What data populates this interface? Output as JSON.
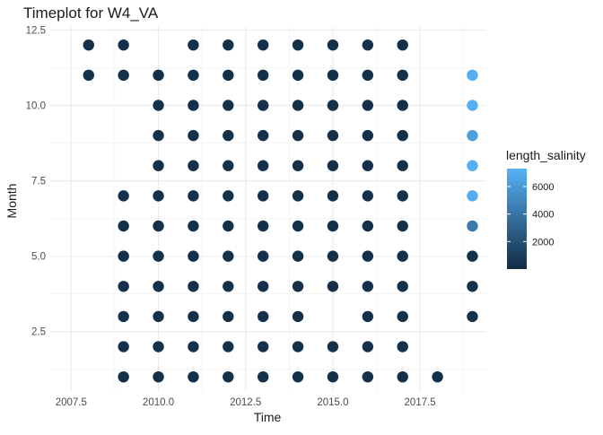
{
  "chart_data": {
    "type": "scatter",
    "title": "Timeplot for W4_VA",
    "xlabel": "Time",
    "ylabel": "Month",
    "xlim": [
      2006.9,
      2019.4
    ],
    "ylim": [
      0.5,
      12.6
    ],
    "x_ticks": [
      2007.5,
      2010.0,
      2012.5,
      2015.0,
      2017.5
    ],
    "x_tick_labels": [
      "2007.5",
      "2010.0",
      "2012.5",
      "2015.0",
      "2017.5"
    ],
    "y_ticks": [
      2.5,
      5.0,
      7.5,
      10.0,
      12.5
    ],
    "y_tick_labels": [
      "2.5",
      "5.0",
      "7.5",
      "10.0",
      "12.5"
    ],
    "grid": true,
    "legend": {
      "title": "length_salinity",
      "position": "right",
      "ticks": [
        2000,
        4000,
        6000
      ],
      "tick_labels": [
        "2000",
        "4000",
        "6000"
      ],
      "range": [
        0,
        7300
      ],
      "color_low": "#132B43",
      "color_high": "#56B1F7"
    },
    "points": [
      {
        "x": 2008,
        "y": 12,
        "value": 250
      },
      {
        "x": 2008,
        "y": 11,
        "value": 250
      },
      {
        "x": 2009,
        "y": 12,
        "value": 250
      },
      {
        "x": 2009,
        "y": 11,
        "value": 250
      },
      {
        "x": 2009,
        "y": 7,
        "value": 250
      },
      {
        "x": 2009,
        "y": 6,
        "value": 250
      },
      {
        "x": 2009,
        "y": 5,
        "value": 250
      },
      {
        "x": 2009,
        "y": 4,
        "value": 250
      },
      {
        "x": 2009,
        "y": 3,
        "value": 250
      },
      {
        "x": 2009,
        "y": 2,
        "value": 250
      },
      {
        "x": 2009,
        "y": 1,
        "value": 250
      },
      {
        "x": 2010,
        "y": 11,
        "value": 250
      },
      {
        "x": 2010,
        "y": 10,
        "value": 250
      },
      {
        "x": 2010,
        "y": 9,
        "value": 250
      },
      {
        "x": 2010,
        "y": 8,
        "value": 250
      },
      {
        "x": 2010,
        "y": 7,
        "value": 250
      },
      {
        "x": 2010,
        "y": 6,
        "value": 250
      },
      {
        "x": 2010,
        "y": 5,
        "value": 250
      },
      {
        "x": 2010,
        "y": 4,
        "value": 250
      },
      {
        "x": 2010,
        "y": 3,
        "value": 250
      },
      {
        "x": 2010,
        "y": 2,
        "value": 250
      },
      {
        "x": 2010,
        "y": 1,
        "value": 250
      },
      {
        "x": 2011,
        "y": 12,
        "value": 250
      },
      {
        "x": 2011,
        "y": 11,
        "value": 250
      },
      {
        "x": 2011,
        "y": 10,
        "value": 250
      },
      {
        "x": 2011,
        "y": 9,
        "value": 250
      },
      {
        "x": 2011,
        "y": 8,
        "value": 250
      },
      {
        "x": 2011,
        "y": 7,
        "value": 250
      },
      {
        "x": 2011,
        "y": 6,
        "value": 250
      },
      {
        "x": 2011,
        "y": 5,
        "value": 250
      },
      {
        "x": 2011,
        "y": 4,
        "value": 250
      },
      {
        "x": 2011,
        "y": 3,
        "value": 250
      },
      {
        "x": 2011,
        "y": 2,
        "value": 250
      },
      {
        "x": 2011,
        "y": 1,
        "value": 250
      },
      {
        "x": 2012,
        "y": 12,
        "value": 250
      },
      {
        "x": 2012,
        "y": 11,
        "value": 250
      },
      {
        "x": 2012,
        "y": 10,
        "value": 250
      },
      {
        "x": 2012,
        "y": 9,
        "value": 250
      },
      {
        "x": 2012,
        "y": 8,
        "value": 250
      },
      {
        "x": 2012,
        "y": 7,
        "value": 250
      },
      {
        "x": 2012,
        "y": 6,
        "value": 250
      },
      {
        "x": 2012,
        "y": 5,
        "value": 250
      },
      {
        "x": 2012,
        "y": 4,
        "value": 250
      },
      {
        "x": 2012,
        "y": 3,
        "value": 250
      },
      {
        "x": 2012,
        "y": 2,
        "value": 250
      },
      {
        "x": 2012,
        "y": 1,
        "value": 250
      },
      {
        "x": 2013,
        "y": 12,
        "value": 250
      },
      {
        "x": 2013,
        "y": 11,
        "value": 250
      },
      {
        "x": 2013,
        "y": 10,
        "value": 250
      },
      {
        "x": 2013,
        "y": 9,
        "value": 250
      },
      {
        "x": 2013,
        "y": 8,
        "value": 250
      },
      {
        "x": 2013,
        "y": 7,
        "value": 250
      },
      {
        "x": 2013,
        "y": 6,
        "value": 250
      },
      {
        "x": 2013,
        "y": 5,
        "value": 250
      },
      {
        "x": 2013,
        "y": 4,
        "value": 250
      },
      {
        "x": 2013,
        "y": 3,
        "value": 250
      },
      {
        "x": 2013,
        "y": 2,
        "value": 250
      },
      {
        "x": 2013,
        "y": 1,
        "value": 250
      },
      {
        "x": 2014,
        "y": 12,
        "value": 250
      },
      {
        "x": 2014,
        "y": 11,
        "value": 250
      },
      {
        "x": 2014,
        "y": 10,
        "value": 250
      },
      {
        "x": 2014,
        "y": 9,
        "value": 250
      },
      {
        "x": 2014,
        "y": 8,
        "value": 250
      },
      {
        "x": 2014,
        "y": 7,
        "value": 250
      },
      {
        "x": 2014,
        "y": 6,
        "value": 250
      },
      {
        "x": 2014,
        "y": 5,
        "value": 250
      },
      {
        "x": 2014,
        "y": 4,
        "value": 250
      },
      {
        "x": 2014,
        "y": 3,
        "value": 250
      },
      {
        "x": 2014,
        "y": 2,
        "value": 250
      },
      {
        "x": 2014,
        "y": 1,
        "value": 250
      },
      {
        "x": 2015,
        "y": 12,
        "value": 250
      },
      {
        "x": 2015,
        "y": 11,
        "value": 250
      },
      {
        "x": 2015,
        "y": 10,
        "value": 250
      },
      {
        "x": 2015,
        "y": 9,
        "value": 250
      },
      {
        "x": 2015,
        "y": 8,
        "value": 250
      },
      {
        "x": 2015,
        "y": 7,
        "value": 250
      },
      {
        "x": 2015,
        "y": 6,
        "value": 250
      },
      {
        "x": 2015,
        "y": 5,
        "value": 250
      },
      {
        "x": 2015,
        "y": 4,
        "value": 250
      },
      {
        "x": 2015,
        "y": 2,
        "value": 250
      },
      {
        "x": 2015,
        "y": 1,
        "value": 250
      },
      {
        "x": 2016,
        "y": 12,
        "value": 250
      },
      {
        "x": 2016,
        "y": 11,
        "value": 250
      },
      {
        "x": 2016,
        "y": 10,
        "value": 250
      },
      {
        "x": 2016,
        "y": 9,
        "value": 250
      },
      {
        "x": 2016,
        "y": 8,
        "value": 250
      },
      {
        "x": 2016,
        "y": 7,
        "value": 250
      },
      {
        "x": 2016,
        "y": 6,
        "value": 250
      },
      {
        "x": 2016,
        "y": 5,
        "value": 250
      },
      {
        "x": 2016,
        "y": 4,
        "value": 250
      },
      {
        "x": 2016,
        "y": 3,
        "value": 250
      },
      {
        "x": 2016,
        "y": 2,
        "value": 250
      },
      {
        "x": 2016,
        "y": 1,
        "value": 250
      },
      {
        "x": 2017,
        "y": 12,
        "value": 250
      },
      {
        "x": 2017,
        "y": 11,
        "value": 250
      },
      {
        "x": 2017,
        "y": 10,
        "value": 250
      },
      {
        "x": 2017,
        "y": 9,
        "value": 250
      },
      {
        "x": 2017,
        "y": 8,
        "value": 250
      },
      {
        "x": 2017,
        "y": 7,
        "value": 250
      },
      {
        "x": 2017,
        "y": 6,
        "value": 250
      },
      {
        "x": 2017,
        "y": 5,
        "value": 250
      },
      {
        "x": 2017,
        "y": 4,
        "value": 250
      },
      {
        "x": 2017,
        "y": 3,
        "value": 250
      },
      {
        "x": 2017,
        "y": 2,
        "value": 250
      },
      {
        "x": 2017,
        "y": 1,
        "value": 250
      },
      {
        "x": 2018,
        "y": 1,
        "value": 250
      },
      {
        "x": 2019,
        "y": 11,
        "value": 7200
      },
      {
        "x": 2019,
        "y": 10,
        "value": 7200
      },
      {
        "x": 2019,
        "y": 9,
        "value": 6300
      },
      {
        "x": 2019,
        "y": 8,
        "value": 7200
      },
      {
        "x": 2019,
        "y": 7,
        "value": 7000
      },
      {
        "x": 2019,
        "y": 6,
        "value": 4300
      },
      {
        "x": 2019,
        "y": 5,
        "value": 250
      },
      {
        "x": 2019,
        "y": 4,
        "value": 250
      },
      {
        "x": 2019,
        "y": 3,
        "value": 250
      }
    ]
  }
}
